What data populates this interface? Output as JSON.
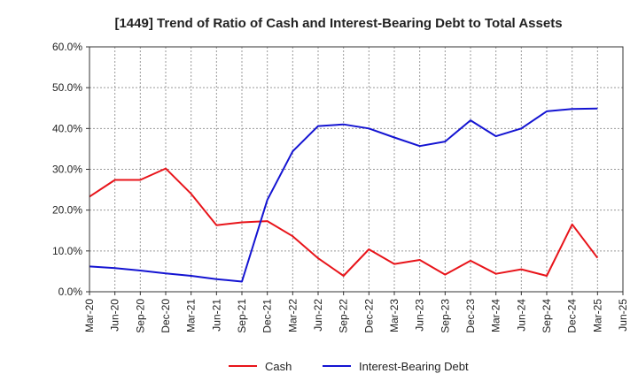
{
  "chart_data": {
    "type": "line",
    "title": "[1449]  Trend of Ratio of Cash and Interest-Bearing Debt to Total Assets",
    "xlabel": "",
    "ylabel": "",
    "categories": [
      "Mar-20",
      "Jun-20",
      "Sep-20",
      "Dec-20",
      "Mar-21",
      "Jun-21",
      "Sep-21",
      "Dec-21",
      "Mar-22",
      "Jun-22",
      "Sep-22",
      "Dec-22",
      "Mar-23",
      "Jun-23",
      "Sep-23",
      "Dec-23",
      "Mar-24",
      "Jun-24",
      "Sep-24",
      "Dec-24",
      "Mar-25",
      "Jun-25"
    ],
    "ylim": [
      0,
      60
    ],
    "yticks": [
      0,
      10,
      20,
      30,
      40,
      50,
      60
    ],
    "ytick_labels": [
      "0.0%",
      "10.0%",
      "20.0%",
      "30.0%",
      "40.0%",
      "50.0%",
      "60.0%"
    ],
    "grid": true,
    "legend_position": "bottom",
    "series": [
      {
        "name": "Cash",
        "color": "#e8141a",
        "values": [
          23.3,
          27.4,
          27.4,
          30.2,
          24.0,
          16.3,
          17.0,
          17.3,
          13.6,
          8.2,
          3.9,
          10.4,
          6.8,
          7.8,
          4.2,
          7.6,
          4.4,
          5.5,
          3.9,
          16.5,
          8.3,
          null
        ]
      },
      {
        "name": "Interest-Bearing Debt",
        "color": "#1414d2",
        "values": [
          6.2,
          5.8,
          5.2,
          4.5,
          3.9,
          3.1,
          2.5,
          22.5,
          34.4,
          40.6,
          41.0,
          40.0,
          37.8,
          35.7,
          36.8,
          42.0,
          38.1,
          40.0,
          44.2,
          44.8,
          44.9,
          null
        ]
      }
    ]
  }
}
